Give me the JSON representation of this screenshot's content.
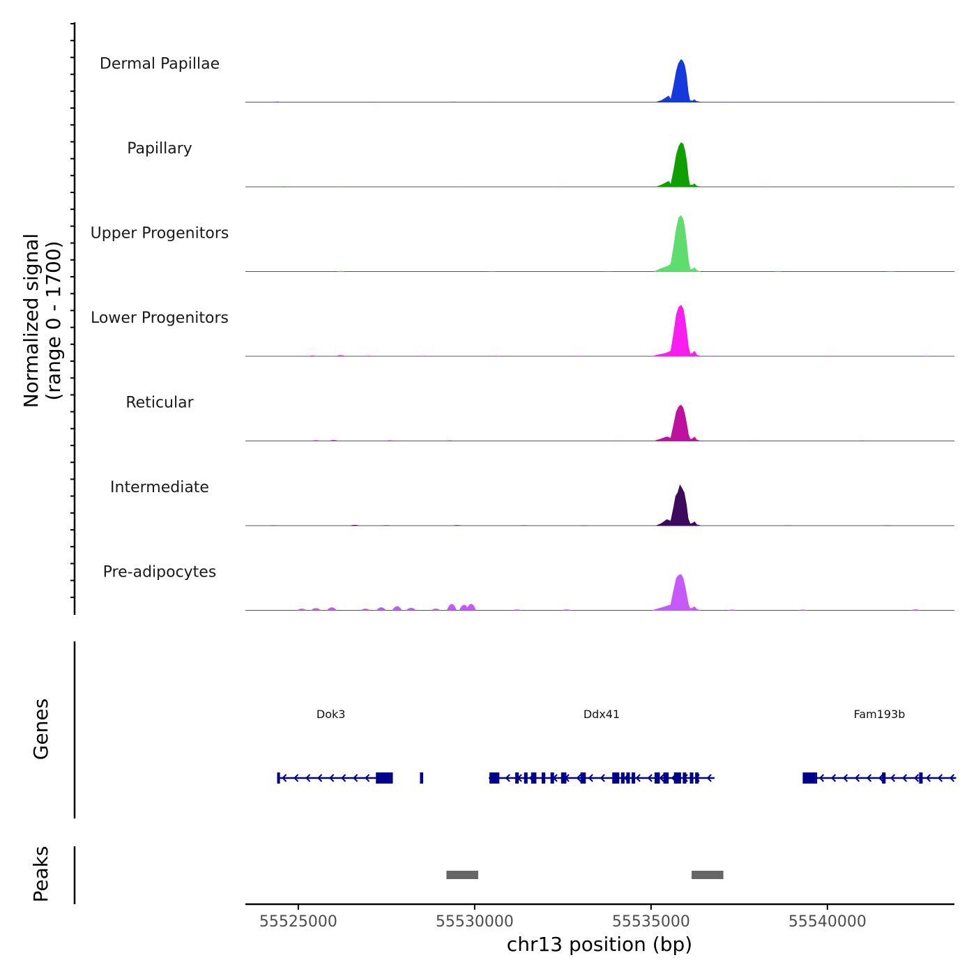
{
  "chart_data": {
    "type": "area",
    "title": "",
    "chromosome": "chr13",
    "x_range": [
      55523500,
      55543600
    ],
    "y_range": [
      0,
      1700
    ],
    "ylabel_line1": "Normalized signal",
    "ylabel_line2": "(range 0 - 1700)",
    "xlabel": "chr13 position (bp)",
    "x_ticks": [
      55525000,
      55530000,
      55535000,
      55540000
    ],
    "x_tick_labels": [
      "55525000",
      "55530000",
      "55535000",
      "55540000"
    ],
    "genes_label": "Genes",
    "peaks_label": "Peaks",
    "tracks": [
      {
        "name": "Dermal Papillae",
        "color": "#1539DB",
        "main_peak": [
          [
            55535150,
            0
          ],
          [
            55535300,
            60
          ],
          [
            55535500,
            220
          ],
          [
            55535560,
            90
          ],
          [
            55535640,
            560
          ],
          [
            55535720,
            1120
          ],
          [
            55535780,
            1380
          ],
          [
            55535850,
            1520
          ],
          [
            55535900,
            1470
          ],
          [
            55535950,
            1320
          ],
          [
            55536000,
            980
          ],
          [
            55536050,
            380
          ],
          [
            55536100,
            60
          ],
          [
            55536180,
            40
          ],
          [
            55536230,
            90
          ],
          [
            55536280,
            30
          ],
          [
            55536400,
            0
          ]
        ],
        "bumps": [
          [
            55524400,
            20
          ],
          [
            55527100,
            14
          ],
          [
            55529400,
            16
          ],
          [
            55530400,
            14
          ],
          [
            55537100,
            10
          ],
          [
            55539700,
            12
          ],
          [
            55542800,
            14
          ]
        ]
      },
      {
        "name": "Papillary",
        "color": "#109E00",
        "main_peak": [
          [
            55535150,
            0
          ],
          [
            55535300,
            70
          ],
          [
            55535500,
            200
          ],
          [
            55535560,
            80
          ],
          [
            55535640,
            560
          ],
          [
            55535720,
            1150
          ],
          [
            55535790,
            1450
          ],
          [
            55535850,
            1580
          ],
          [
            55535910,
            1530
          ],
          [
            55535960,
            1300
          ],
          [
            55536010,
            900
          ],
          [
            55536060,
            320
          ],
          [
            55536100,
            60
          ],
          [
            55536180,
            60
          ],
          [
            55536230,
            110
          ],
          [
            55536290,
            30
          ],
          [
            55536400,
            0
          ]
        ],
        "bumps": [
          [
            55524600,
            16
          ],
          [
            55526200,
            12
          ],
          [
            55529700,
            14
          ],
          [
            55532400,
            12
          ],
          [
            55538300,
            12
          ],
          [
            55542100,
            12
          ]
        ]
      },
      {
        "name": "Upper Progenitors",
        "color": "#5EDC6E",
        "main_peak": [
          [
            55535100,
            0
          ],
          [
            55535250,
            90
          ],
          [
            55535450,
            180
          ],
          [
            55535560,
            260
          ],
          [
            55535640,
            850
          ],
          [
            55535720,
            1550
          ],
          [
            55535790,
            1930
          ],
          [
            55535850,
            2000
          ],
          [
            55535910,
            1860
          ],
          [
            55535960,
            1520
          ],
          [
            55536010,
            980
          ],
          [
            55536060,
            380
          ],
          [
            55536110,
            80
          ],
          [
            55536180,
            80
          ],
          [
            55536230,
            140
          ],
          [
            55536300,
            30
          ],
          [
            55536400,
            0
          ]
        ],
        "bumps": [
          [
            55526200,
            20
          ],
          [
            55530500,
            10
          ],
          [
            55533800,
            10
          ],
          [
            55538600,
            12
          ],
          [
            55541800,
            12
          ]
        ]
      },
      {
        "name": "Lower Progenitors",
        "color": "#F81EF0",
        "main_peak": [
          [
            55535050,
            0
          ],
          [
            55535200,
            50
          ],
          [
            55535400,
            100
          ],
          [
            55535560,
            180
          ],
          [
            55535640,
            780
          ],
          [
            55535720,
            1500
          ],
          [
            55535790,
            1760
          ],
          [
            55535850,
            1820
          ],
          [
            55535910,
            1700
          ],
          [
            55535960,
            1350
          ],
          [
            55536010,
            860
          ],
          [
            55536060,
            330
          ],
          [
            55536110,
            80
          ],
          [
            55536180,
            110
          ],
          [
            55536230,
            180
          ],
          [
            55536300,
            40
          ],
          [
            55536400,
            0
          ]
        ],
        "bumps": [
          [
            55525400,
            24
          ],
          [
            55526200,
            42
          ],
          [
            55527000,
            18
          ],
          [
            55528600,
            16
          ],
          [
            55530600,
            16
          ],
          [
            55533000,
            14
          ],
          [
            55536700,
            12
          ],
          [
            55540100,
            14
          ],
          [
            55542800,
            12
          ]
        ]
      },
      {
        "name": "Reticular",
        "color": "#BC139E",
        "main_peak": [
          [
            55535100,
            0
          ],
          [
            55535250,
            60
          ],
          [
            55535450,
            150
          ],
          [
            55535560,
            100
          ],
          [
            55535640,
            560
          ],
          [
            55535720,
            1050
          ],
          [
            55535790,
            1230
          ],
          [
            55535850,
            1280
          ],
          [
            55535910,
            1180
          ],
          [
            55535960,
            940
          ],
          [
            55536010,
            600
          ],
          [
            55536060,
            230
          ],
          [
            55536110,
            60
          ],
          [
            55536180,
            80
          ],
          [
            55536230,
            140
          ],
          [
            55536300,
            30
          ],
          [
            55536400,
            0
          ]
        ],
        "bumps": [
          [
            55525500,
            26
          ],
          [
            55526000,
            30
          ],
          [
            55527600,
            22
          ],
          [
            55529300,
            18
          ],
          [
            55534000,
            12
          ],
          [
            55537900,
            12
          ],
          [
            55541000,
            16
          ]
        ]
      },
      {
        "name": "Intermediate",
        "color": "#3D0B5E",
        "main_peak": [
          [
            55535150,
            0
          ],
          [
            55535300,
            80
          ],
          [
            55535450,
            220
          ],
          [
            55535560,
            160
          ],
          [
            55535640,
            640
          ],
          [
            55535700,
            1060
          ],
          [
            55535760,
            1180
          ],
          [
            55535820,
            1450
          ],
          [
            55535880,
            1320
          ],
          [
            55535940,
            1180
          ],
          [
            55536000,
            760
          ],
          [
            55536050,
            260
          ],
          [
            55536110,
            60
          ],
          [
            55536180,
            90
          ],
          [
            55536230,
            140
          ],
          [
            55536300,
            30
          ],
          [
            55536400,
            0
          ]
        ],
        "bumps": [
          [
            55524300,
            12
          ],
          [
            55526600,
            28
          ],
          [
            55527500,
            16
          ],
          [
            55529500,
            18
          ],
          [
            55531400,
            12
          ],
          [
            55533100,
            12
          ],
          [
            55538900,
            12
          ],
          [
            55541700,
            14
          ]
        ]
      },
      {
        "name": "Pre-adipocytes",
        "color": "#C55AF8",
        "main_peak": [
          [
            55535050,
            0
          ],
          [
            55535200,
            60
          ],
          [
            55535400,
            130
          ],
          [
            55535560,
            200
          ],
          [
            55535640,
            700
          ],
          [
            55535720,
            1160
          ],
          [
            55535790,
            1260
          ],
          [
            55535850,
            1280
          ],
          [
            55535910,
            1150
          ],
          [
            55535960,
            880
          ],
          [
            55536010,
            540
          ],
          [
            55536060,
            200
          ],
          [
            55536110,
            60
          ],
          [
            55536180,
            90
          ],
          [
            55536230,
            130
          ],
          [
            55536300,
            30
          ],
          [
            55536400,
            0
          ]
        ],
        "bumps": [
          [
            55525100,
            60
          ],
          [
            55525500,
            80
          ],
          [
            55525950,
            110
          ],
          [
            55526900,
            60
          ],
          [
            55527350,
            110
          ],
          [
            55527800,
            150
          ],
          [
            55528200,
            90
          ],
          [
            55528900,
            60
          ],
          [
            55529350,
            230
          ],
          [
            55529700,
            200
          ],
          [
            55529900,
            230
          ],
          [
            55531200,
            30
          ],
          [
            55532600,
            30
          ],
          [
            55537300,
            25
          ],
          [
            55539300,
            25
          ],
          [
            55542500,
            35
          ]
        ]
      }
    ],
    "genes": [
      {
        "name": "Dok3",
        "start": 55524400,
        "end": 55527450,
        "strand": "-",
        "exons": [
          [
            55524400,
            55524480
          ],
          [
            55527200,
            55527600
          ],
          [
            55527600,
            55527680
          ],
          [
            55528450,
            55528540
          ]
        ]
      },
      {
        "name": "Ddx41",
        "start": 55530400,
        "end": 55536800,
        "strand": "-",
        "exons": [
          [
            55530420,
            55530700
          ],
          [
            55531150,
            55531250
          ],
          [
            55531400,
            55531500
          ],
          [
            55531600,
            55531750
          ],
          [
            55531900,
            55532000
          ],
          [
            55532150,
            55532250
          ],
          [
            55532450,
            55532600
          ],
          [
            55533000,
            55533150
          ],
          [
            55533900,
            55534100
          ],
          [
            55534150,
            55534250
          ],
          [
            55534300,
            55534400
          ],
          [
            55534450,
            55534550
          ],
          [
            55535100,
            55535250
          ],
          [
            55535350,
            55535500
          ],
          [
            55535650,
            55535850
          ],
          [
            55535900,
            55536000
          ],
          [
            55536100,
            55536200
          ],
          [
            55536250,
            55536350
          ]
        ]
      },
      {
        "name": "Fam193b",
        "start": 55539300,
        "end": 55543650,
        "strand": "-",
        "exons": [
          [
            55539300,
            55539650
          ],
          [
            55539650,
            55539700
          ],
          [
            55541550,
            55541650
          ],
          [
            55542600,
            55542700
          ]
        ]
      }
    ],
    "peaks": [
      [
        55529200,
        55530100
      ],
      [
        55536150,
        55537050
      ]
    ]
  }
}
